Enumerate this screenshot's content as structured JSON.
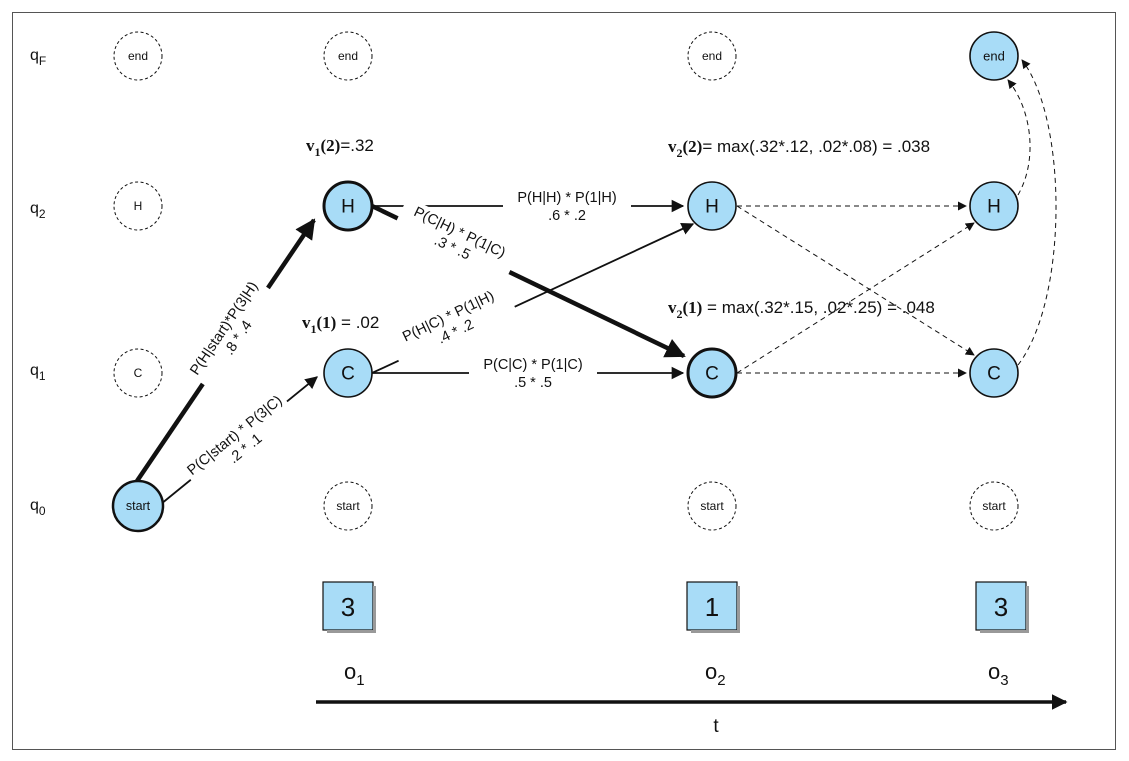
{
  "colors": {
    "node_fill": "#a8dcf7",
    "box_fill": "#a8dcf7",
    "line": "#111111"
  },
  "rows": {
    "qF": {
      "q": "q",
      "sub": "F"
    },
    "q2": {
      "q": "q",
      "sub": "2"
    },
    "q1": {
      "q": "q",
      "sub": "1"
    },
    "q0": {
      "q": "q",
      "sub": "0"
    }
  },
  "nodes": {
    "end": "end",
    "H": "H",
    "C": "C",
    "start": "start"
  },
  "edges": {
    "start_H": {
      "line1": "P(H|start)*P(3|H)",
      "line2": ".8 * .4"
    },
    "start_C": {
      "line1": "P(C|start) * P(3|C)",
      "line2": ".2 * .1"
    },
    "H_H": {
      "line1": "P(H|H) * P(1|H)",
      "line2": ".6 * .2"
    },
    "H_C": {
      "line1": "P(C|H) * P(1|C)",
      "line2": ".3 * .5"
    },
    "C_H": {
      "line1": "P(H|C) * P(1|H)",
      "line2": ".4 * .2"
    },
    "C_C": {
      "line1": "P(C|C) * P(1|C)",
      "line2": ".5 * .5"
    }
  },
  "viterbi": {
    "v1_2": {
      "v": "v",
      "sub": "1",
      "arg": "(2)",
      "rest": "=.32"
    },
    "v1_1": {
      "v": "v",
      "sub": "1",
      "arg": "(1)",
      "rest": " = .02"
    },
    "v2_2": {
      "v": "v",
      "sub": "2",
      "arg": "(2)",
      "rest": "= max(.32*.12, .02*.08) = .038"
    },
    "v2_1": {
      "v": "v",
      "sub": "2",
      "arg": "(1)",
      "rest": " = max(.32*.15, .02*.25) = .048"
    }
  },
  "observations": [
    {
      "value": "3",
      "o": "o",
      "sub": "1"
    },
    {
      "value": "1",
      "o": "o",
      "sub": "2"
    },
    {
      "value": "3",
      "o": "o",
      "sub": "3"
    }
  ],
  "time_axis": {
    "label": "t"
  }
}
